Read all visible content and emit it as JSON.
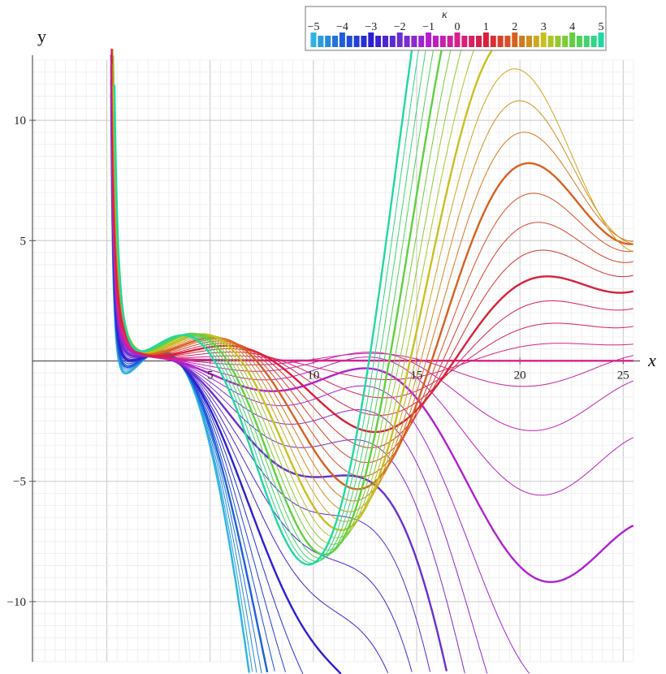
{
  "chart_data": {
    "type": "line",
    "xlabel": "x",
    "ylabel": "y",
    "xlim": [
      -3.6,
      25.5
    ],
    "ylim": [
      -12.5,
      12.5
    ],
    "grid": true,
    "x_ticks": [
      {
        "value": 5,
        "label": "5"
      },
      {
        "value": 10,
        "label": "10"
      },
      {
        "value": 15,
        "label": "15"
      },
      {
        "value": 20,
        "label": "20"
      },
      {
        "value": 25,
        "label": "25"
      }
    ],
    "y_ticks": [
      {
        "value": 10,
        "label": "10"
      },
      {
        "value": 5,
        "label": "5"
      },
      {
        "value": -5,
        "label": "−5"
      },
      {
        "value": -10,
        "label": "−10"
      }
    ],
    "legend": {
      "title": "κ",
      "placement": "top-right",
      "range": [
        -5,
        5
      ],
      "tick_values": [
        -5,
        -4,
        -3,
        -2,
        -1,
        0,
        1,
        2,
        3,
        4,
        5
      ],
      "tick_labels": [
        "−5",
        "−4",
        "−3",
        "−2",
        "−1",
        "0",
        "1",
        "2",
        "3",
        "4",
        "5"
      ]
    },
    "series_parameter": "κ",
    "kappa_values": [
      -5,
      -4.75,
      -4.5,
      -4.25,
      -4,
      -3.75,
      -3.5,
      -3.25,
      -3,
      -2.75,
      -2.5,
      -2.25,
      -2,
      -1.75,
      -1.5,
      -1.25,
      -1,
      -0.75,
      -0.5,
      -0.25,
      0,
      0.25,
      0.5,
      0.75,
      1,
      1.25,
      1.5,
      1.75,
      2,
      2.25,
      2.5,
      2.75,
      3,
      3.25,
      3.5,
      3.75,
      4,
      4.25,
      4.5,
      4.75,
      5
    ],
    "emphasized_kappa": [
      -5,
      -4,
      -3,
      -2,
      -1,
      0,
      1,
      2,
      3,
      4,
      5
    ],
    "colorscale": [
      "#2eb4e0",
      "#1f5fd8",
      "#2a1fd0",
      "#6a2fd0",
      "#b020d0",
      "#d8208c",
      "#d8203a",
      "#d86020",
      "#c8c020",
      "#60d040",
      "#20d8a0"
    ]
  }
}
